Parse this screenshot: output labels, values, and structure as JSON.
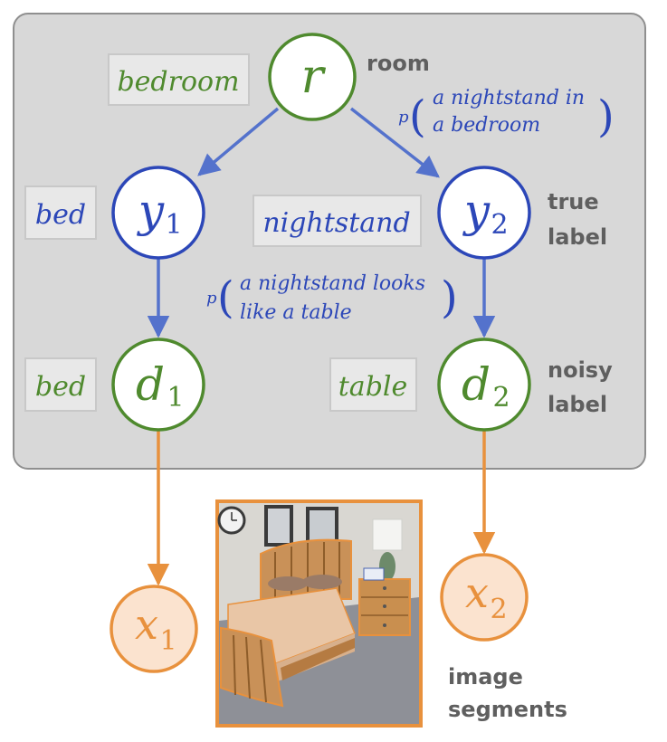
{
  "nodes": {
    "r": {
      "var": "r",
      "sub": ""
    },
    "y1": {
      "var": "y",
      "sub": "1"
    },
    "y2": {
      "var": "y",
      "sub": "2"
    },
    "d1": {
      "var": "d",
      "sub": "1"
    },
    "d2": {
      "var": "d",
      "sub": "2"
    },
    "x1": {
      "var": "x",
      "sub": "1"
    },
    "x2": {
      "var": "x",
      "sub": "2"
    }
  },
  "labels": {
    "bedroom": "bedroom",
    "y1_bed": "bed",
    "nightstand": "nightstand",
    "d1_bed": "bed",
    "table": "table"
  },
  "side_labels": {
    "room": "room",
    "true_label": [
      "true",
      "label"
    ],
    "noisy_label": [
      "noisy",
      "label"
    ],
    "image_segments": [
      "image",
      "segments"
    ]
  },
  "probabilities": {
    "room_to_y2": {
      "p": "p",
      "lines": [
        "a nightstand in",
        "a bedroom"
      ]
    },
    "y2_to_d2": {
      "p": "p",
      "lines": [
        "a nightstand looks",
        "like a table"
      ]
    }
  },
  "colors": {
    "green": "#4f8a2e",
    "blue": "#2c47b8",
    "blue_arrow": "#5472cc",
    "orange": "#e8913d",
    "gray_label": "#5f5f5f",
    "panel_fill": "#d8d8d8",
    "panel_stroke": "#8f8f8f",
    "chip_fill": "#e8e8e8",
    "chip_stroke": "#c8c8c8",
    "x_fill": "#fbe3cf"
  },
  "photo": {
    "description_icon": "bedroom-photo"
  }
}
